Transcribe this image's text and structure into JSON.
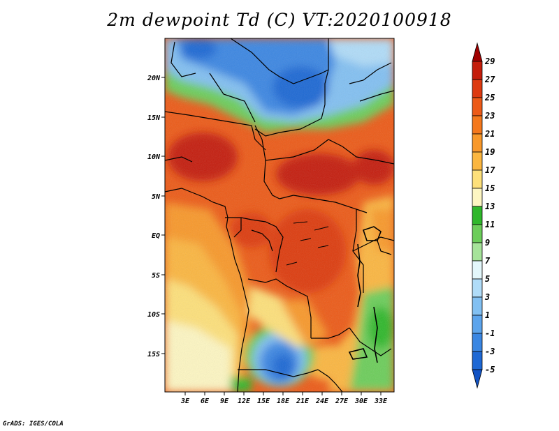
{
  "title": "2m dewpoint Td (C) VT:2020100918",
  "credit": "GrADS: IGES/COLA",
  "map": {
    "lon_labels": [
      "3E",
      "6E",
      "9E",
      "12E",
      "15E",
      "18E",
      "21E",
      "24E",
      "27E",
      "30E",
      "33E"
    ],
    "lat_labels": [
      "20N",
      "15N",
      "10N",
      "5N",
      "EQ",
      "5S",
      "10S",
      "15S"
    ]
  },
  "colorbar": {
    "labels": [
      "29",
      "27",
      "25",
      "23",
      "21",
      "19",
      "17",
      "15",
      "13",
      "11",
      "9",
      "7",
      "5",
      "3",
      "1",
      "-1",
      "-3",
      "-5"
    ],
    "colors": [
      "#a00000",
      "#c41d0b",
      "#dd3a10",
      "#ec5a17",
      "#f4781c",
      "#f8982a",
      "#fbb63f",
      "#fde07a",
      "#fdf6c2",
      "#2fb72b",
      "#6ccd5a",
      "#a6e39a",
      "#e3f7fb",
      "#b0dcf8",
      "#82c0f2",
      "#5ca4ec",
      "#3a86e2",
      "#1e68d4",
      "#1253c4"
    ]
  }
}
